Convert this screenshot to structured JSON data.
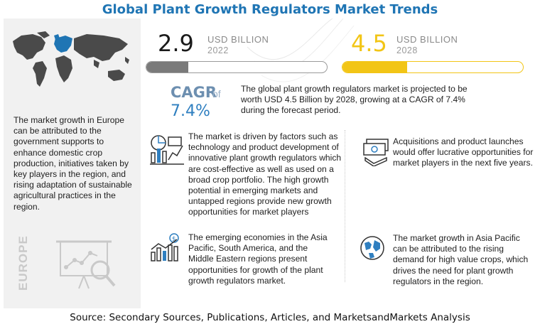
{
  "title": "Global Plant Growth Regulators Market Trends",
  "chart_data": {
    "type": "bar",
    "categories": [
      "2022",
      "2028"
    ],
    "values": [
      2.9,
      4.5
    ],
    "unit": "USD BILLION",
    "cagr": "7.4%",
    "colors": {
      "2022": "#7a7a7a",
      "2028": "#f2c516"
    }
  },
  "market": {
    "value_2022": "2.9",
    "unit_2022": "USD BILLION",
    "year_2022": "2022",
    "value_2028": "4.5",
    "unit_2028": "USD BILLION",
    "year_2028": "2028",
    "cagr_label": "CAGR",
    "cagr_of": "of",
    "cagr_value": "7.4%",
    "projection_text": "The global plant growth regulators market is projected to be worth USD 4.5 Billion by 2028, growing at a CAGR of 7.4% during the forecast period."
  },
  "europe": {
    "text": "The market growth in  Europe can be attributed to the government supports to enhance domestic crop production, initiatives taken by key players in  the region, and rising adaptation of sustainable agricultural practices in the region.",
    "label": "EUROPE"
  },
  "drivers": [
    {
      "icon": "analytics-chart-icon",
      "text": "The market is driven by factors such as technology and product development of innovative plant growth regulators which are cost-effective as well as used on a broad crop portfolio. The high growth potential in emerging markets and untapped regions provide new growth opportunities for market players"
    },
    {
      "icon": "money-stack-icon",
      "text": "Acquisitions and product launches would offer lucrative opportunities for market players in the next five years."
    },
    {
      "icon": "growth-bar-chart-icon",
      "text": "The emerging economies in the Asia Pacific, South America, and the Middle Eastern regions present opportunities for growth of the plant growth regulators market."
    },
    {
      "icon": "globe-icon",
      "text": "The market growth in Asia Pacific can be attributed to the rising demand for high value crops, which drives the need for plant growth regulators in the region."
    }
  ],
  "source": "Source: Secondary Sources, Publications, Articles, and MarketsandMarkets Analysis",
  "colors": {
    "title": "#1f75b4",
    "accent_yellow": "#f2c516",
    "cagr_blue": "#2f7fc0",
    "map_gray": "#4a4a4a"
  }
}
